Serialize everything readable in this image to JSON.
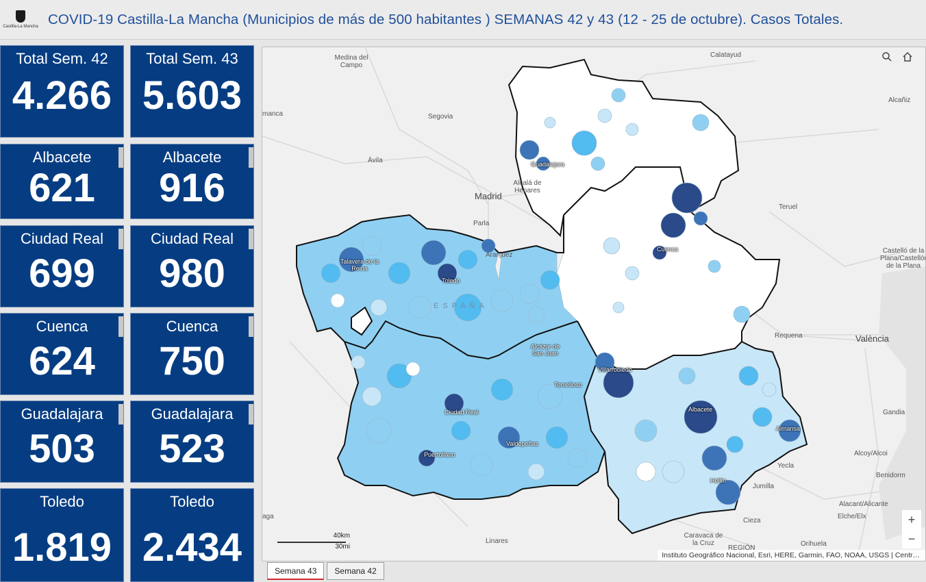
{
  "header": {
    "logo_text": "Castilla-La Mancha",
    "title": "COVID-19 Castilla-La Mancha (Municipios de más de 500 habitantes ) SEMANAS 42 y 43 (12 - 25 de octubre). Casos Totales."
  },
  "cards": {
    "total42": {
      "label": "Total Sem. 42",
      "value": "4.266"
    },
    "total43": {
      "label": "Total Sem. 43",
      "value": "5.603"
    },
    "albacete42": {
      "label": "Albacete",
      "value": "621"
    },
    "albacete43": {
      "label": "Albacete",
      "value": "916"
    },
    "ciudadreal42": {
      "label": "Ciudad Real",
      "value": "699"
    },
    "ciudadreal43": {
      "label": "Ciudad Real",
      "value": "980"
    },
    "cuenca42": {
      "label": "Cuenca",
      "value": "624"
    },
    "cuenca43": {
      "label": "Cuenca",
      "value": "750"
    },
    "guadalajara42": {
      "label": "Guadalajara",
      "value": "503"
    },
    "guadalajara43": {
      "label": "Guadalajara",
      "value": "523"
    },
    "toledo42": {
      "label": "Toledo",
      "value": "1.819"
    },
    "toledo43": {
      "label": "Toledo",
      "value": "2.434"
    }
  },
  "map": {
    "places": {
      "medina": "Medina del Campo",
      "calatayud": "Calatayud",
      "alcaniz": "Alcañiz",
      "manca": "manca",
      "segovia": "Segovia",
      "avila": "Ávila",
      "alcala": "Alcalá de Henares",
      "madrid": "Madrid",
      "parla": "Parla",
      "aranjuez": "Aranjuez",
      "teruel": "Teruel",
      "castello": "Castelló de la Plana/Castellón de la Plana",
      "requena": "Requena",
      "valencia": "València",
      "gandia": "Gandia",
      "alcoy": "Alcoy/Alcoi",
      "yecla": "Yecla",
      "benidorm": "Benidorm",
      "jumilla": "Jumilla",
      "alicante": "Alacant/Alicante",
      "elche": "Elche/Elx",
      "cieza": "Cieza",
      "caravaca": "Caravaca de la Cruz",
      "orihuela": "Orihuela",
      "linares": "Linares",
      "aga": "aga",
      "region": "REGIÓN"
    },
    "cities": {
      "guadalajara": "Guadalajara",
      "cuenca": "Cuenca",
      "talavera": "Talavera de la Reina",
      "toledo": "Toledo",
      "alcazar": "Alcázar de San Juan",
      "tomelloso": "Tomelloso",
      "villarrobledo": "Villarrobledo",
      "albacete": "Albacete",
      "almansa": "Almansa",
      "ciudadreal": "Ciudad Real",
      "valdepenas": "Valdepeñas",
      "puertollano": "Puertollano",
      "hellin": "Hellín"
    },
    "watermark": "ESPAÑA",
    "scale_km": "40km",
    "scale_mi": "30mi",
    "zoom_in": "+",
    "zoom_out": "−",
    "attribution": "Instituto Geográfico Nacional, Esri, HERE, Garmin, FAO, NOAA, USGS | Centr…",
    "colors": {
      "level0": "#ffffff",
      "level1": "#c7e6f7",
      "level2": "#8fd0f2",
      "level3": "#52bbef",
      "level4": "#3d74b8",
      "level5": "#2a4a8a"
    }
  },
  "tabs": [
    {
      "label": "Semana 43",
      "active": true
    },
    {
      "label": "Semana 42",
      "active": false
    }
  ]
}
